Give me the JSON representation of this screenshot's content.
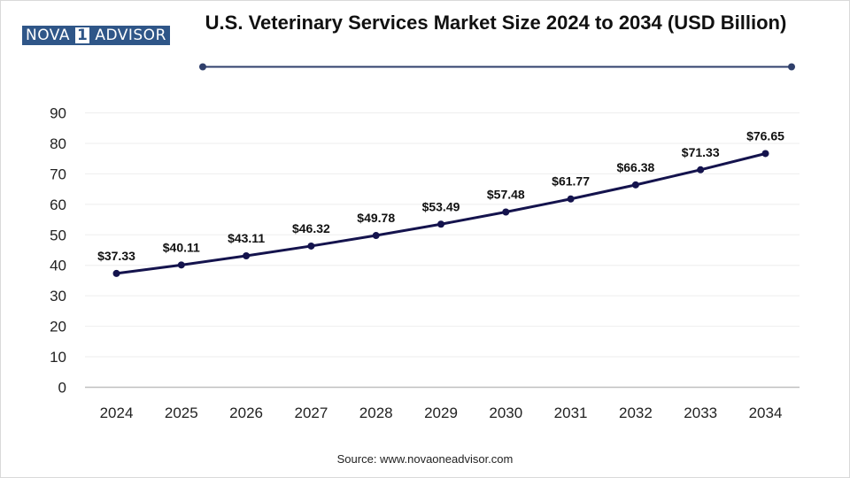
{
  "logo": {
    "part1": "NOVA",
    "part2": "1",
    "part3": "ADVISOR"
  },
  "title": "U.S. Veterinary Services Market Size 2024 to 2034 (USD Billion)",
  "source": "Source: www.novaoneadvisor.com",
  "colors": {
    "line": "#14134d",
    "brand": "#2f5688",
    "grid": "#eeeeee",
    "axis": "#bfbfbf"
  },
  "chart_data": {
    "type": "line",
    "title": "U.S. Veterinary Services Market Size 2024 to 2034 (USD Billion)",
    "xlabel": "",
    "ylabel": "",
    "categories": [
      "2024",
      "2025",
      "2026",
      "2027",
      "2028",
      "2029",
      "2030",
      "2031",
      "2032",
      "2033",
      "2034"
    ],
    "series": [
      {
        "values": [
          37.33,
          40.11,
          43.11,
          46.32,
          49.78,
          53.49,
          57.48,
          61.77,
          66.38,
          71.33,
          76.65
        ],
        "labels": [
          "$37.33",
          "$40.11",
          "$43.11",
          "$46.32",
          "$49.78",
          "$53.49",
          "$57.48",
          "$61.77",
          "$66.38",
          "$71.33",
          "$76.65"
        ]
      }
    ],
    "ylim": [
      0,
      90
    ],
    "yticks": [
      0,
      10,
      20,
      30,
      40,
      50,
      60,
      70,
      80,
      90
    ],
    "grid": true,
    "legend": "none"
  }
}
